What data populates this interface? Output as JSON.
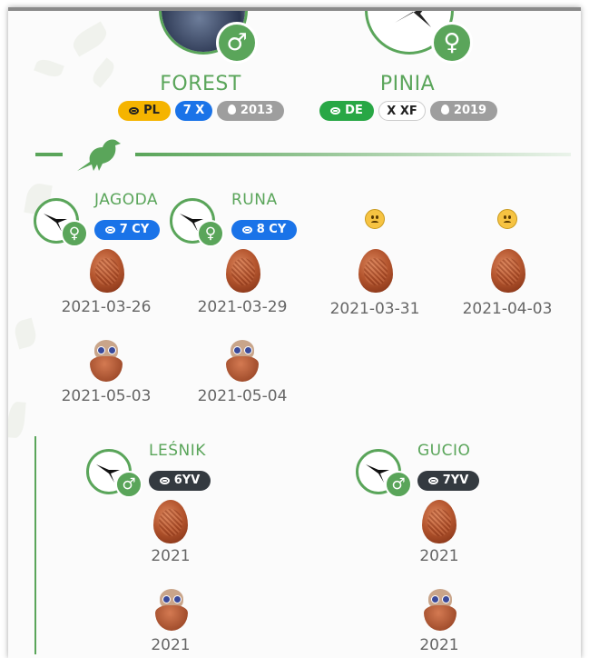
{
  "colors": {
    "accent": "#5aa55a",
    "ring_pl": "#f5b400",
    "ring_blue": "#1a73e8",
    "ring_green": "#28a745",
    "dark": "#343a40",
    "grey": "#9e9e9e"
  },
  "parents": [
    {
      "name": "FOREST",
      "sex": "♂",
      "sex_icon": "male-icon",
      "badges": [
        {
          "kind": "ring",
          "text": "PL"
        },
        {
          "kind": "plain",
          "text": "7 X"
        },
        {
          "kind": "drop",
          "text": "2013"
        }
      ]
    },
    {
      "name": "PINIA",
      "sex": "♀",
      "sex_icon": "female-icon",
      "badges": [
        {
          "kind": "ring",
          "text": "DE"
        },
        {
          "kind": "plain",
          "text": "X XF"
        },
        {
          "kind": "drop",
          "text": "2019"
        }
      ]
    }
  ],
  "section_icon": "bird-icon",
  "brood1": {
    "chicks": [
      {
        "name": "JAGODA",
        "sex": "♀",
        "ring": "7 CY"
      },
      {
        "name": "RUNA",
        "sex": "♀",
        "ring": "8 CY"
      }
    ],
    "eggs": [
      {
        "date": "2021-03-26"
      },
      {
        "date": "2021-03-29"
      },
      {
        "date": "2021-03-31",
        "sad": true
      },
      {
        "date": "2021-04-03",
        "sad": true
      }
    ],
    "hatch": [
      {
        "date": "2021-05-03"
      },
      {
        "date": "2021-05-04"
      }
    ]
  },
  "brood2": {
    "chicks": [
      {
        "name": "LEŚNIK",
        "sex": "♂",
        "ring": "6YV",
        "egg_year": "2021",
        "hatch_year": "2021"
      },
      {
        "name": "GUCIO",
        "sex": "♂",
        "ring": "7YV",
        "egg_year": "2021",
        "hatch_year": "2021"
      }
    ]
  }
}
